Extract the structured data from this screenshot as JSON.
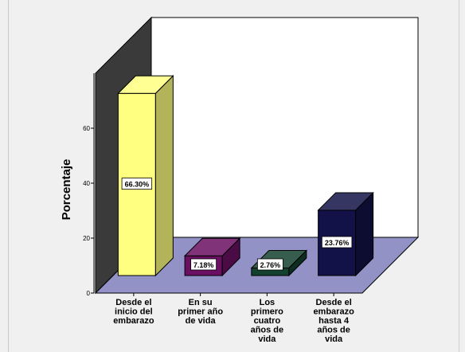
{
  "chart_data": {
    "type": "bar",
    "ylabel": "Porcentaje",
    "ylim": [
      0,
      80
    ],
    "yticks": [
      0,
      20,
      40,
      60
    ],
    "yticklabels": [
      "0",
      "20",
      "40",
      "60"
    ],
    "categories": [
      "Desde el inicio del embarazo",
      "En su primer año de vida",
      "Los primero cuatro años de vida",
      "Desde el embarazo hasta 4 años de vida"
    ],
    "category_lines": [
      [
        "Desde el",
        "inicio del",
        "embarazo"
      ],
      [
        "En su",
        "primer año",
        "de vida"
      ],
      [
        "Los",
        "primero",
        "cuatro",
        "años de",
        "vida"
      ],
      [
        "Desde el",
        "embarazo",
        "hasta 4",
        "años de",
        "vida"
      ]
    ],
    "values": [
      66.3,
      7.18,
      2.76,
      23.76
    ],
    "data_labels": [
      "66.30%",
      "7.18%",
      "2.76%",
      "23.76%"
    ],
    "colors": [
      "#ffff80",
      "#6b0f63",
      "#13402f",
      "#121248"
    ],
    "wall_color": "#3a3a3a",
    "floor_color": "#9292c6",
    "grid": false
  }
}
